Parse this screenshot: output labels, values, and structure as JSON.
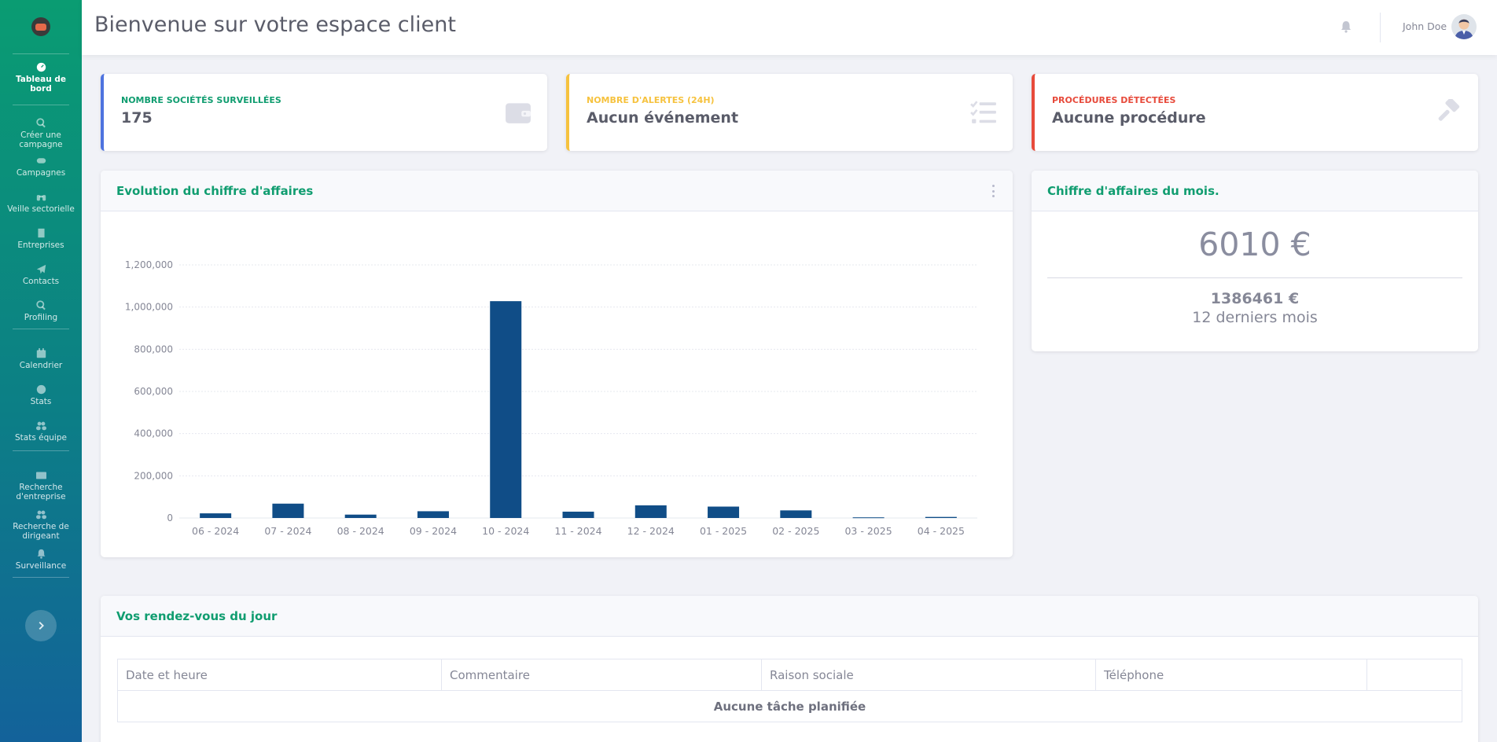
{
  "colors": {
    "accent": "#109d70",
    "primary": "#4e73df",
    "warning": "#f6c23e",
    "danger": "#e74a3b",
    "bar": "#104d87"
  },
  "sidebar": {
    "items": [
      {
        "label": "Tableau de bord",
        "icon": "dashboard-icon"
      },
      {
        "label": "Créer une campagne",
        "icon": "search-icon"
      },
      {
        "label": "Campagnes",
        "icon": "gamepad-icon"
      },
      {
        "label": "Veille sectorielle",
        "icon": "binoculars-icon"
      },
      {
        "label": "Entreprises",
        "icon": "building-icon"
      },
      {
        "label": "Contacts",
        "icon": "paper-plane-icon"
      },
      {
        "label": "Profiling",
        "icon": "search-icon"
      },
      {
        "label": "Calendrier",
        "icon": "calendar-icon"
      },
      {
        "label": "Stats",
        "icon": "dashboard-icon"
      },
      {
        "label": "Stats équipe",
        "icon": "users-icon"
      },
      {
        "label": "Recherche d'entreprise",
        "icon": "id-card-icon"
      },
      {
        "label": "Recherche de dirigeant",
        "icon": "users-icon"
      },
      {
        "label": "Surveillance",
        "icon": "bell-icon"
      }
    ]
  },
  "header": {
    "title": "Bienvenue sur votre espace client",
    "user": "John Doe"
  },
  "stats": [
    {
      "label": "Nombre sociétés surveillées",
      "value": "175",
      "icon": "wallet-icon"
    },
    {
      "label": "Nombre d'alertes (24h)",
      "value": "Aucun événement",
      "icon": "tasks-icon"
    },
    {
      "label": "Procédures détectées",
      "value": "Aucune procédure",
      "icon": "gavel-icon"
    }
  ],
  "revenue_chart": {
    "title": "Evolution du chiffre d'affaires",
    "y_ticks": [
      "1,200,000",
      "1,000,000",
      "800,000",
      "600,000",
      "400,000",
      "200,000",
      "0"
    ]
  },
  "chart_data": {
    "type": "bar",
    "title": "Evolution du chiffre d'affaires",
    "xlabel": "",
    "ylabel": "",
    "categories": [
      "06 - 2024",
      "07 - 2024",
      "08 - 2024",
      "09 - 2024",
      "10 - 2024",
      "11 - 2024",
      "12 - 2024",
      "01 - 2025",
      "02 - 2025",
      "03 - 2025",
      "04 - 2025"
    ],
    "values": [
      22000,
      68000,
      16000,
      32000,
      1028000,
      30000,
      60000,
      54000,
      36000,
      3000,
      5000
    ],
    "ylim": [
      0,
      1200000
    ],
    "grid": true
  },
  "monthly": {
    "title": "Chiffre d'affaires du mois.",
    "value": "6010 €",
    "total": "1386461 €",
    "period": "12 derniers mois"
  },
  "appointments": {
    "title": "Vos rendez-vous du jour",
    "columns": [
      "Date et heure",
      "Commentaire",
      "Raison sociale",
      "Téléphone",
      ""
    ],
    "empty": "Aucune tâche planifiée"
  }
}
